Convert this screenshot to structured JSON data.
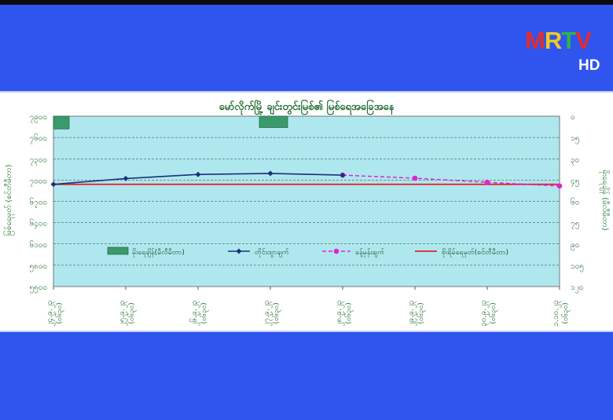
{
  "broadcaster": {
    "logo_letters": [
      "M",
      "R",
      "T",
      "V"
    ],
    "logo_hd": "HD"
  },
  "chart_data": {
    "type": "line",
    "title": "မော်လိုက်မြို့ ချင်းတွင်းမြစ်၏ မြစ်ရေအခြေအနေ",
    "ylabel_left": "မြစ်ရေမှတ် (စင်တီမီတာ)",
    "ylabel_right": "မိုးရေချိန် (မီလီမီတာ)",
    "left_axis": {
      "range": [
        5500,
        8000
      ],
      "ticks": [
        "၅၅၀၀",
        "၅၈၀၀",
        "၆၁၀၀",
        "၆၄၀၀",
        "၆၇၀၀",
        "၇၀၀၀",
        "၇၃၀၀",
        "၇၆၀၀",
        "၇၉၀၀"
      ]
    },
    "right_axis": {
      "range": [
        0,
        120
      ],
      "inverted": true,
      "ticks": [
        "၀",
        "၁၅",
        "၃၀",
        "၄၅",
        "၆၀",
        "၇၅",
        "၉၀",
        "၁၀၅",
        "၁၂၀"
      ]
    },
    "x_labels": [
      {
        "date": "၂၄.၉.၂၃",
        "time": "(၀၆၃၀)"
      },
      {
        "date": "၂၅.၉.၂၃",
        "time": "(၀၆၃၀)"
      },
      {
        "date": "၂၆.၉.၂၃",
        "time": "(၀၆၃၀)"
      },
      {
        "date": "၂၇.၉.၂၃",
        "time": "(၀၆၃၀)"
      },
      {
        "date": "၂၈.၉.၂၃",
        "time": "(၀၆၃၀)"
      },
      {
        "date": "၂၉.၉.၂၃",
        "time": "(၀၆၃၀)"
      },
      {
        "date": "၃၀.၉.၂၃",
        "time": "(၀၆၃၀)"
      },
      {
        "date": "၁.၁၀.၂၃",
        "time": "(၀၆၃၀)"
      }
    ],
    "series": [
      {
        "name": "မိုးရေချိန်(မီလီမီတာ)",
        "kind": "bar",
        "axis": "right",
        "color": "#3a9a6b",
        "values": [
          9,
          null,
          null,
          8,
          null,
          null,
          null,
          null
        ]
      },
      {
        "name": "တိုင်းထွာချက်",
        "kind": "line",
        "axis": "left",
        "color": "#1f2f7a",
        "values": [
          7000,
          7085,
          7145,
          7160,
          7135,
          null,
          null,
          null
        ]
      },
      {
        "name": "ခန့်မှန်းချက်",
        "kind": "dashed",
        "axis": "left",
        "color": "#e024d0",
        "values": [
          null,
          null,
          null,
          null,
          7135,
          7090,
          7030,
          6975
        ]
      },
      {
        "name": "စိုးရိမ်ရေမှတ်(စင်တီမီတာ)",
        "kind": "reference",
        "axis": "left",
        "color": "#e8202e",
        "value": 7000
      }
    ],
    "grid": true,
    "legend_position": "center-left"
  }
}
